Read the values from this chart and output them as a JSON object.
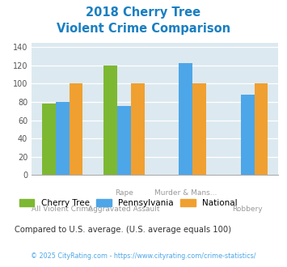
{
  "title_line1": "2018 Cherry Tree",
  "title_line2": "Violent Crime Comparison",
  "title_color": "#1a7fc1",
  "xtick_labels_row1": [
    "",
    "Rape",
    "Murder & Mans...",
    ""
  ],
  "xtick_labels_row2": [
    "All Violent Crime",
    "Aggravated Assault",
    "",
    "Robbery"
  ],
  "cherry_tree": [
    78,
    120,
    0,
    0
  ],
  "pennsylvania": [
    80,
    76,
    123,
    88
  ],
  "national": [
    100,
    100,
    100,
    100
  ],
  "cherry_color": "#7db832",
  "penn_color": "#4da6e8",
  "national_color": "#f0a030",
  "ylim": [
    0,
    145
  ],
  "yticks": [
    0,
    20,
    40,
    60,
    80,
    100,
    120,
    140
  ],
  "bg_color": "#dce9f0",
  "legend_labels": [
    "Cherry Tree",
    "Pennsylvania",
    "National"
  ],
  "footnote": "Compared to U.S. average. (U.S. average equals 100)",
  "footnote2": "© 2025 CityRating.com - https://www.cityrating.com/crime-statistics/",
  "footnote_color": "#333333",
  "footnote2_color": "#4da6e8",
  "bar_width": 0.22
}
